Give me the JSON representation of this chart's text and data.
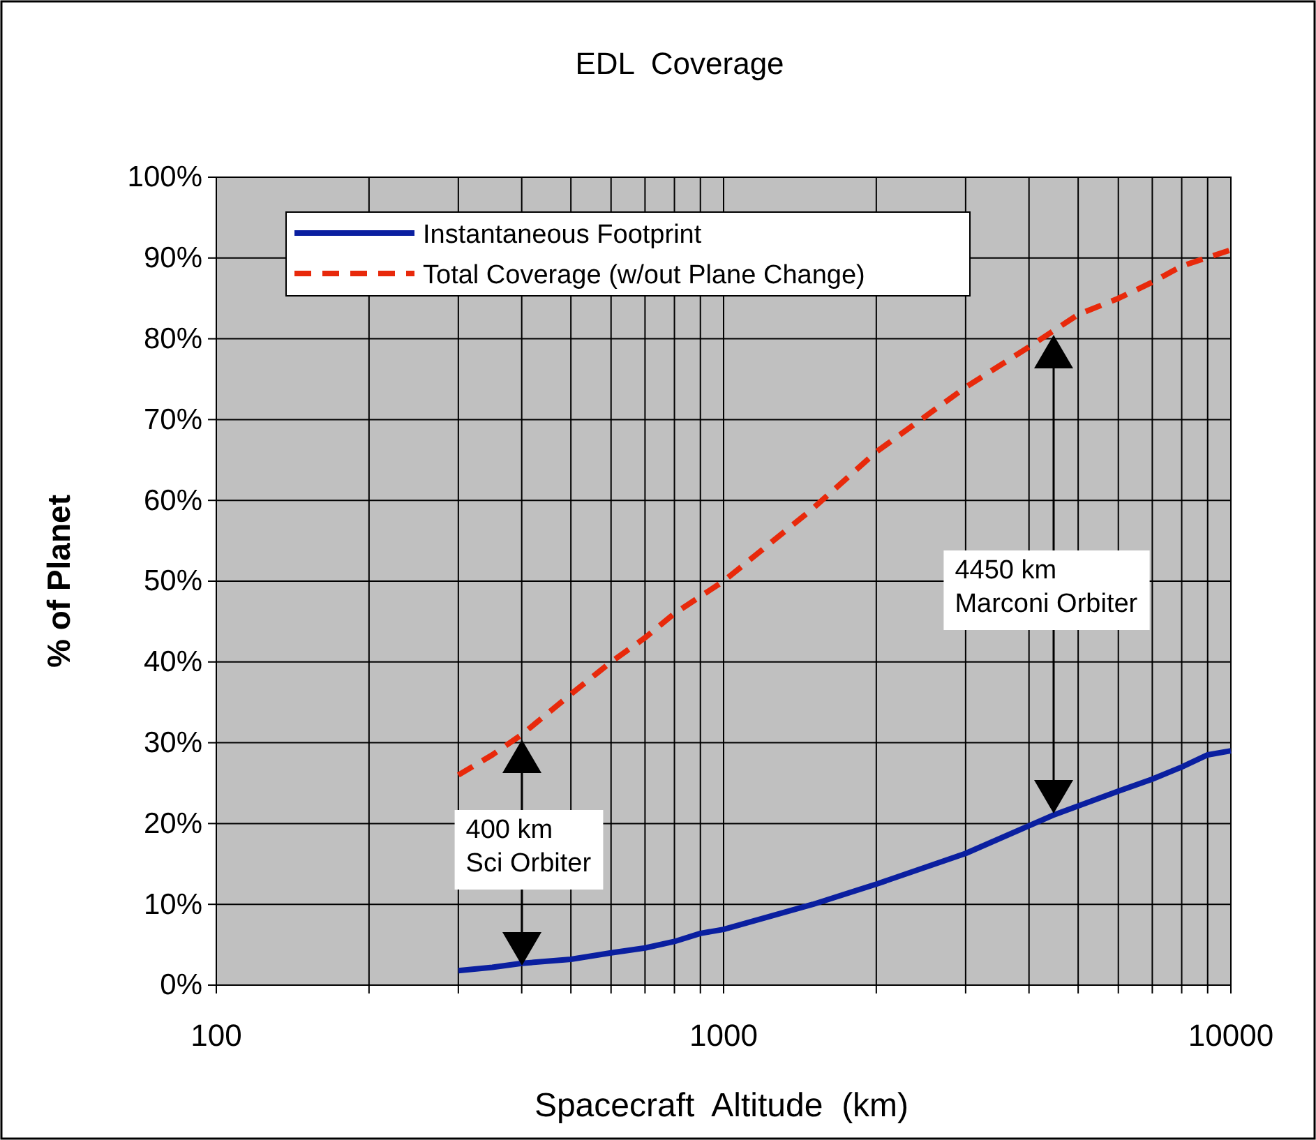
{
  "chart_data": {
    "type": "line",
    "title": "EDL  Coverage",
    "xlabel": "Spacecraft  Altitude  (km)",
    "ylabel": "% of Planet",
    "log": "x",
    "grid": true,
    "legend": "top left",
    "xlim": [
      100,
      10000
    ],
    "ylim": [
      0,
      100
    ],
    "xticks": [
      100,
      {
        "value": 200,
        "label": null
      },
      {
        "value": 300,
        "label": null
      },
      {
        "value": 400,
        "label": null
      },
      {
        "value": 500,
        "label": null
      },
      {
        "value": 600,
        "label": null
      },
      {
        "value": 700,
        "label": null
      },
      {
        "value": 800,
        "label": null
      },
      {
        "value": 900,
        "label": null
      },
      1000,
      {
        "value": 2000,
        "label": null
      },
      {
        "value": 3000,
        "label": null
      },
      {
        "value": 4000,
        "label": null
      },
      {
        "value": 5000,
        "label": null
      },
      {
        "value": 6000,
        "label": null
      },
      {
        "value": 7000,
        "label": null
      },
      {
        "value": 8000,
        "label": null
      },
      {
        "value": 9000,
        "label": null
      },
      10000
    ],
    "yticks": [
      {
        "value": 0,
        "label": "0%"
      },
      {
        "value": 10,
        "label": "10%"
      },
      {
        "value": 20,
        "label": "20%"
      },
      {
        "value": 30,
        "label": "30%"
      },
      {
        "value": 40,
        "label": "40%"
      },
      {
        "value": 50,
        "label": "50%"
      },
      {
        "value": 60,
        "label": "60%"
      },
      {
        "value": 70,
        "label": "70%"
      },
      {
        "value": 80,
        "label": "80%"
      },
      {
        "value": 90,
        "label": "90%"
      },
      {
        "value": 100,
        "label": "100%"
      }
    ],
    "series": [
      {
        "name": "Instantaneous Footprint",
        "color": "#0a1fa0",
        "line_style": "solid",
        "x": [
          300,
          350,
          400,
          500,
          600,
          700,
          800,
          900,
          1000,
          1500,
          2000,
          3000,
          4450,
          6000,
          7000,
          8000,
          9000,
          10000
        ],
        "values": [
          1.8,
          2.2,
          2.7,
          3.2,
          4,
          4.6,
          5.4,
          6.4,
          6.9,
          10,
          12.5,
          16.3,
          21,
          24,
          25.5,
          27,
          28.5,
          29
        ]
      },
      {
        "name": "Total Coverage (w/out Plane Change)",
        "color": "#e8290b",
        "line_style": "dashed",
        "x": [
          300,
          350,
          400,
          500,
          600,
          700,
          800,
          1000,
          1500,
          2000,
          3000,
          4000,
          5000,
          6000,
          7000,
          8000,
          10000
        ],
        "values": [
          26,
          28.5,
          31,
          36,
          40,
          43,
          46,
          50,
          59,
          66,
          74,
          79,
          83,
          85,
          87,
          89,
          91
        ]
      }
    ],
    "annotations": [
      "400 km\nSci Orbiter",
      "4450 km\nMarconi Orbiter"
    ]
  }
}
